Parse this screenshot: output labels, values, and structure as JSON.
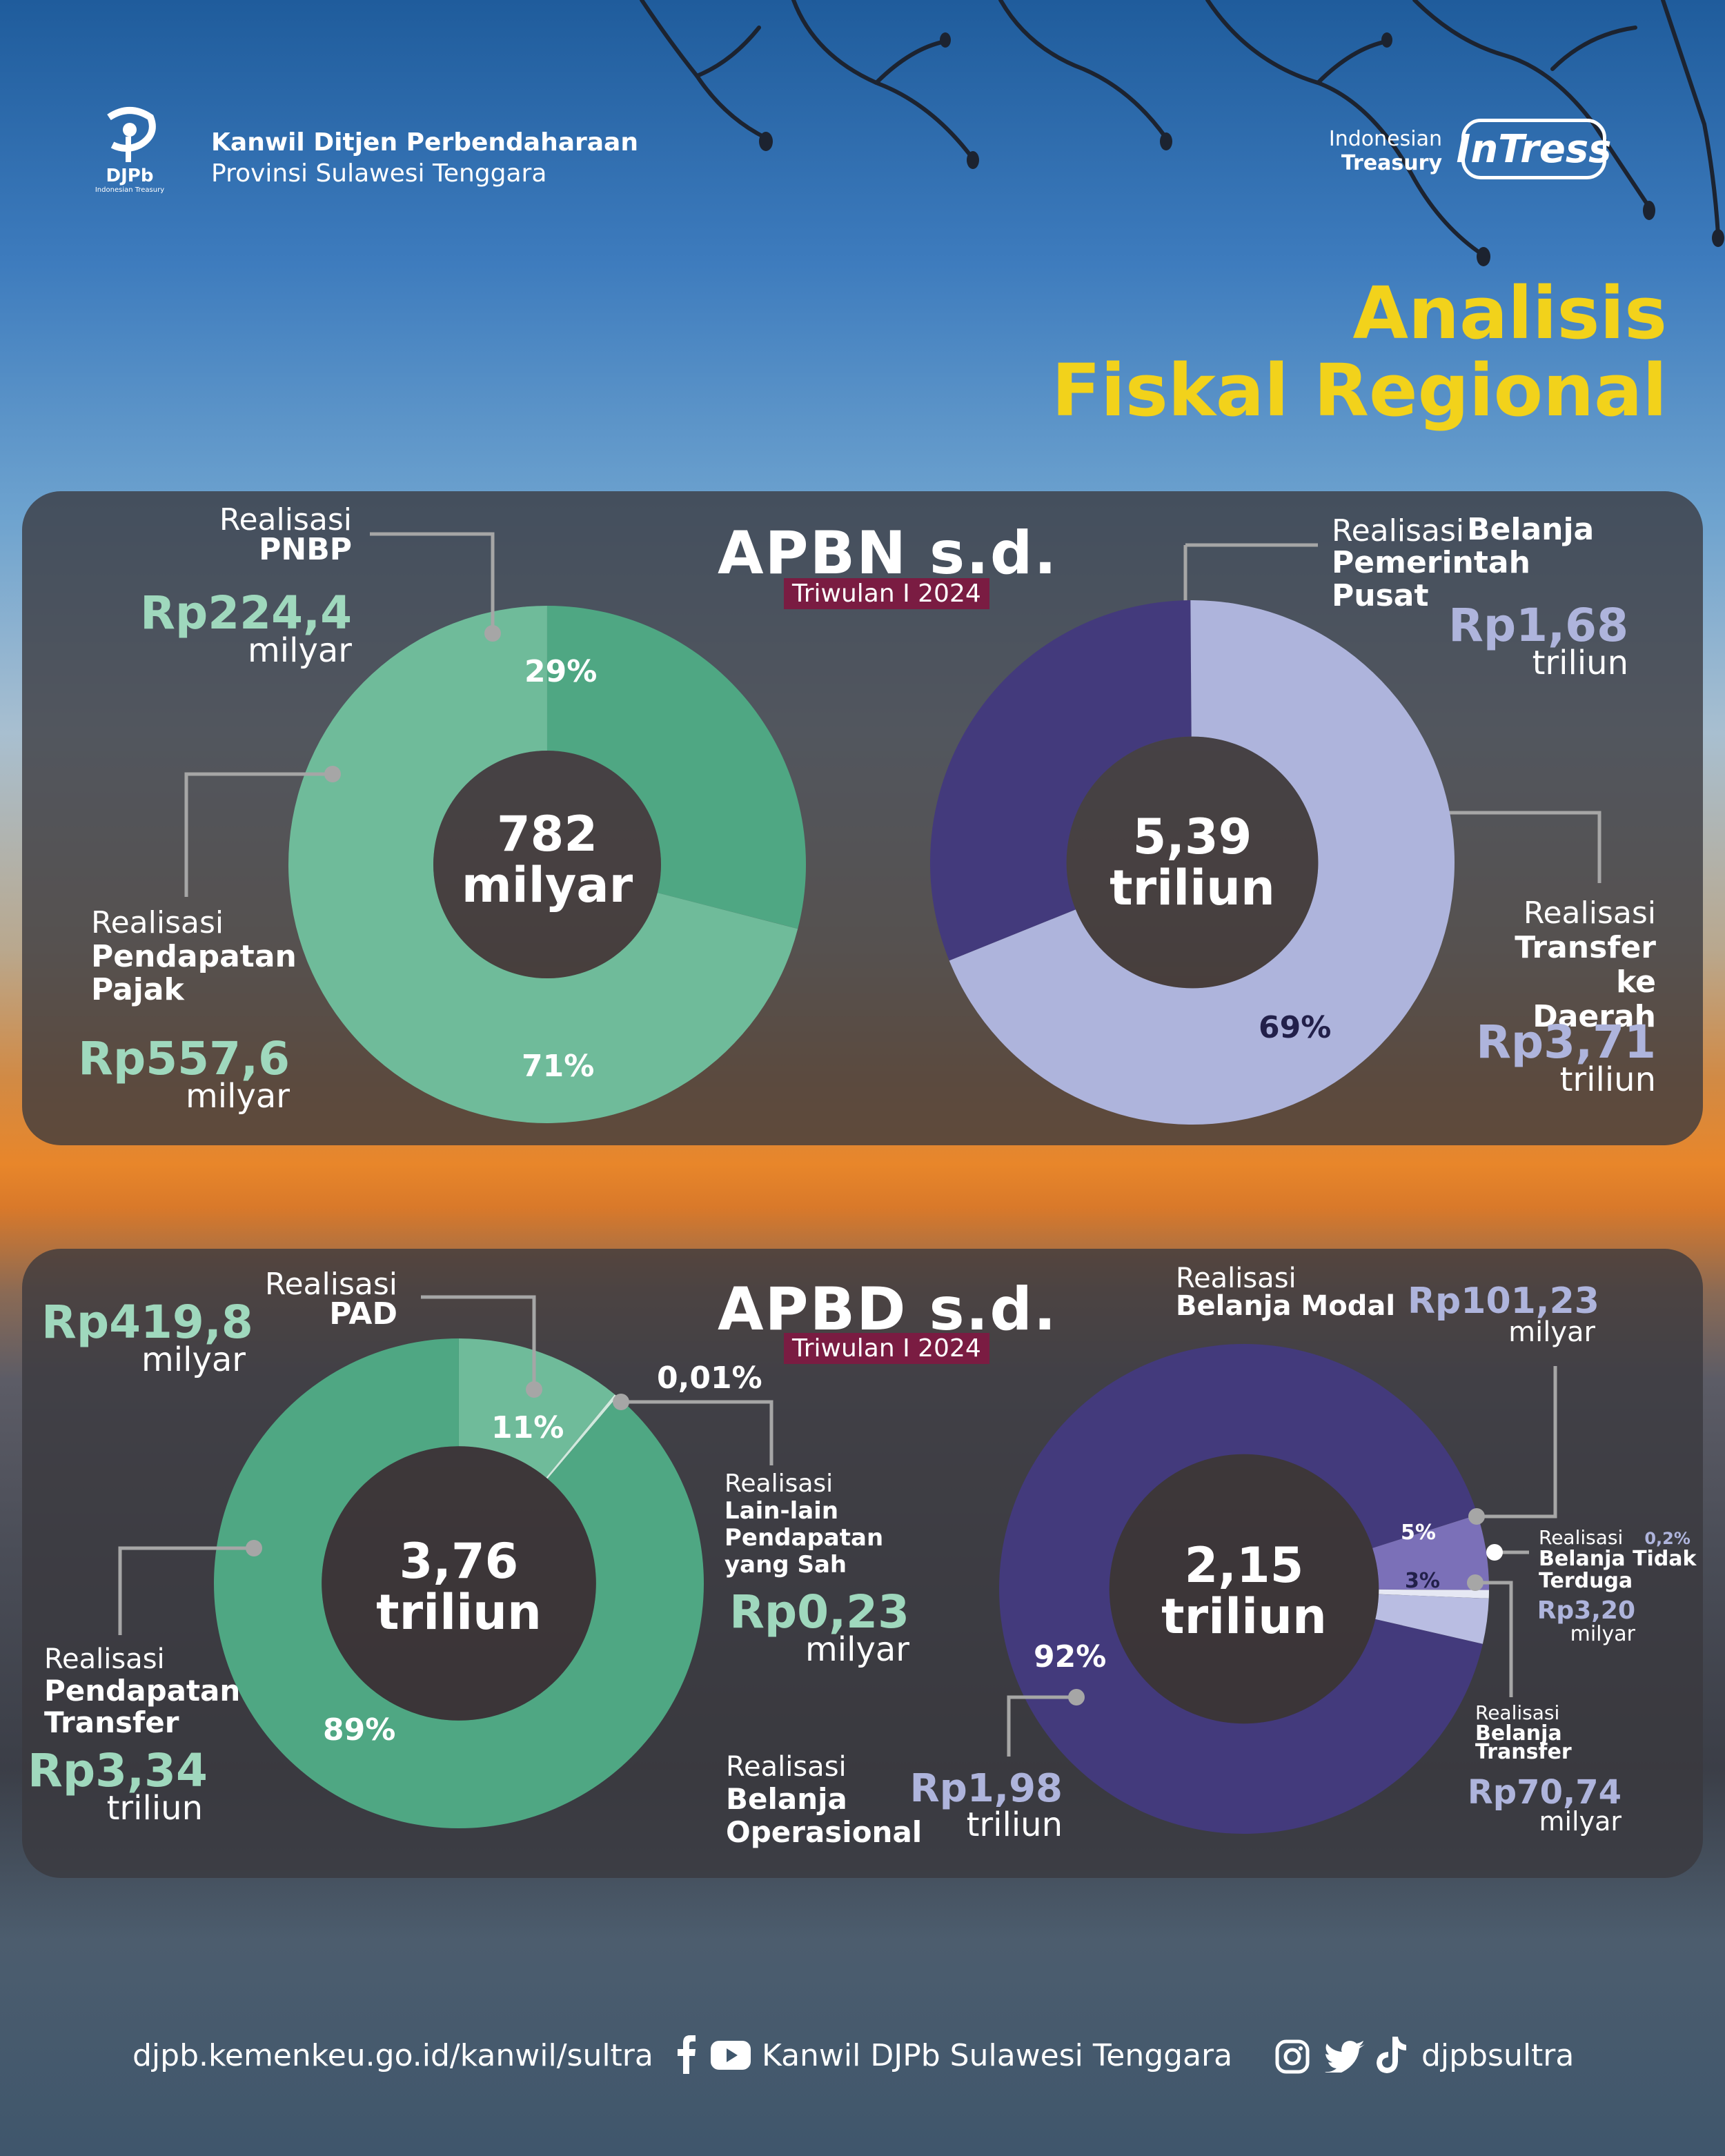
{
  "header": {
    "logo_label": "DJPb",
    "logo_sub": "Indonesian Treasury",
    "org_line1": "Kanwil Ditjen Perbendaharaan",
    "org_line2": "Provinsi Sulawesi Tenggara",
    "brand_small1": "Indonesian",
    "brand_small2": "Treasury",
    "brand_name": "InTress",
    "title_line1": "Analisis",
    "title_line2": "Fiskal Regional",
    "title_color": "#f2d21b"
  },
  "chart_data": [
    {
      "type": "pie",
      "section": "APBN s.d.",
      "period": "Triwulan I 2024",
      "center_value": "782",
      "center_unit": "milyar",
      "slices": [
        {
          "label_prefix": "Realisasi",
          "label": "PNBP",
          "amount": "Rp224,4",
          "unit": "milyar",
          "percent": 29,
          "percent_label": "29%",
          "color": "#4fa783"
        },
        {
          "label_prefix": "Realisasi",
          "label": "Pendapatan Pajak",
          "amount": "Rp557,6",
          "unit": "milyar",
          "percent": 71,
          "percent_label": "71%",
          "color": "#6fbb9a"
        }
      ]
    },
    {
      "type": "pie",
      "section": "APBN s.d.",
      "period": "Triwulan I 2024",
      "center_value": "5,39",
      "center_unit": "triliun",
      "slices": [
        {
          "label_prefix": "Realisasi",
          "label": "Belanja Pemerintah Pusat",
          "amount": "Rp1,68",
          "unit": "triliun",
          "percent": 31,
          "percent_label": "",
          "color": "#433a7c"
        },
        {
          "label_prefix": "Realisasi",
          "label": "Transfer ke Daerah",
          "amount": "Rp3,71",
          "unit": "triliun",
          "percent": 69,
          "percent_label": "69%",
          "color": "#aeb4dc"
        }
      ]
    },
    {
      "type": "pie",
      "section": "APBD s.d.",
      "period": "Triwulan I 2024",
      "center_value": "3,76",
      "center_unit": "triliun",
      "slices": [
        {
          "label_prefix": "Realisasi",
          "label": "PAD",
          "amount": "Rp419,8",
          "unit": "milyar",
          "percent": 11,
          "percent_label": "11%",
          "color": "#6fbb9a"
        },
        {
          "label_prefix": "Realisasi",
          "label": "Lain-lain Pendapatan yang Sah",
          "amount": "Rp0,23",
          "unit": "milyar",
          "percent": 0.01,
          "percent_label": "0,01%",
          "color": "#d0e9dd"
        },
        {
          "label_prefix": "Realisasi",
          "label": "Pendapatan Transfer",
          "amount": "Rp3,34",
          "unit": "triliun",
          "percent": 89,
          "percent_label": "89%",
          "color": "#4fa783"
        }
      ]
    },
    {
      "type": "pie",
      "section": "APBD s.d.",
      "period": "Triwulan I 2024",
      "center_value": "2,15",
      "center_unit": "triliun",
      "slices": [
        {
          "label_prefix": "Realisasi",
          "label": "Belanja Modal",
          "amount": "Rp101,23",
          "unit": "milyar",
          "percent": 5,
          "percent_label": "5%",
          "color": "#7b70b8"
        },
        {
          "label_prefix": "Realisasi",
          "label": "Belanja Tidak Terduga",
          "amount": "Rp3,20",
          "unit": "milyar",
          "percent": 0.2,
          "percent_label": "0,2%",
          "color": "#e6e8f4"
        },
        {
          "label_prefix": "Realisasi",
          "label": "Belanja Transfer",
          "amount": "Rp70,74",
          "unit": "milyar",
          "percent": 3,
          "percent_label": "3%",
          "color": "#b9bde2"
        },
        {
          "label_prefix": "Realisasi",
          "label": "Belanja Operasional",
          "amount": "Rp1,98",
          "unit": "triliun",
          "percent": 92,
          "percent_label": "92%",
          "color": "#433a7c"
        }
      ]
    }
  ],
  "footer": {
    "website": "djpb.kemenkeu.go.id/kanwil/sultra",
    "channel": "Kanwil DJPb Sulawesi Tenggara",
    "handle": "djpbsultra"
  }
}
